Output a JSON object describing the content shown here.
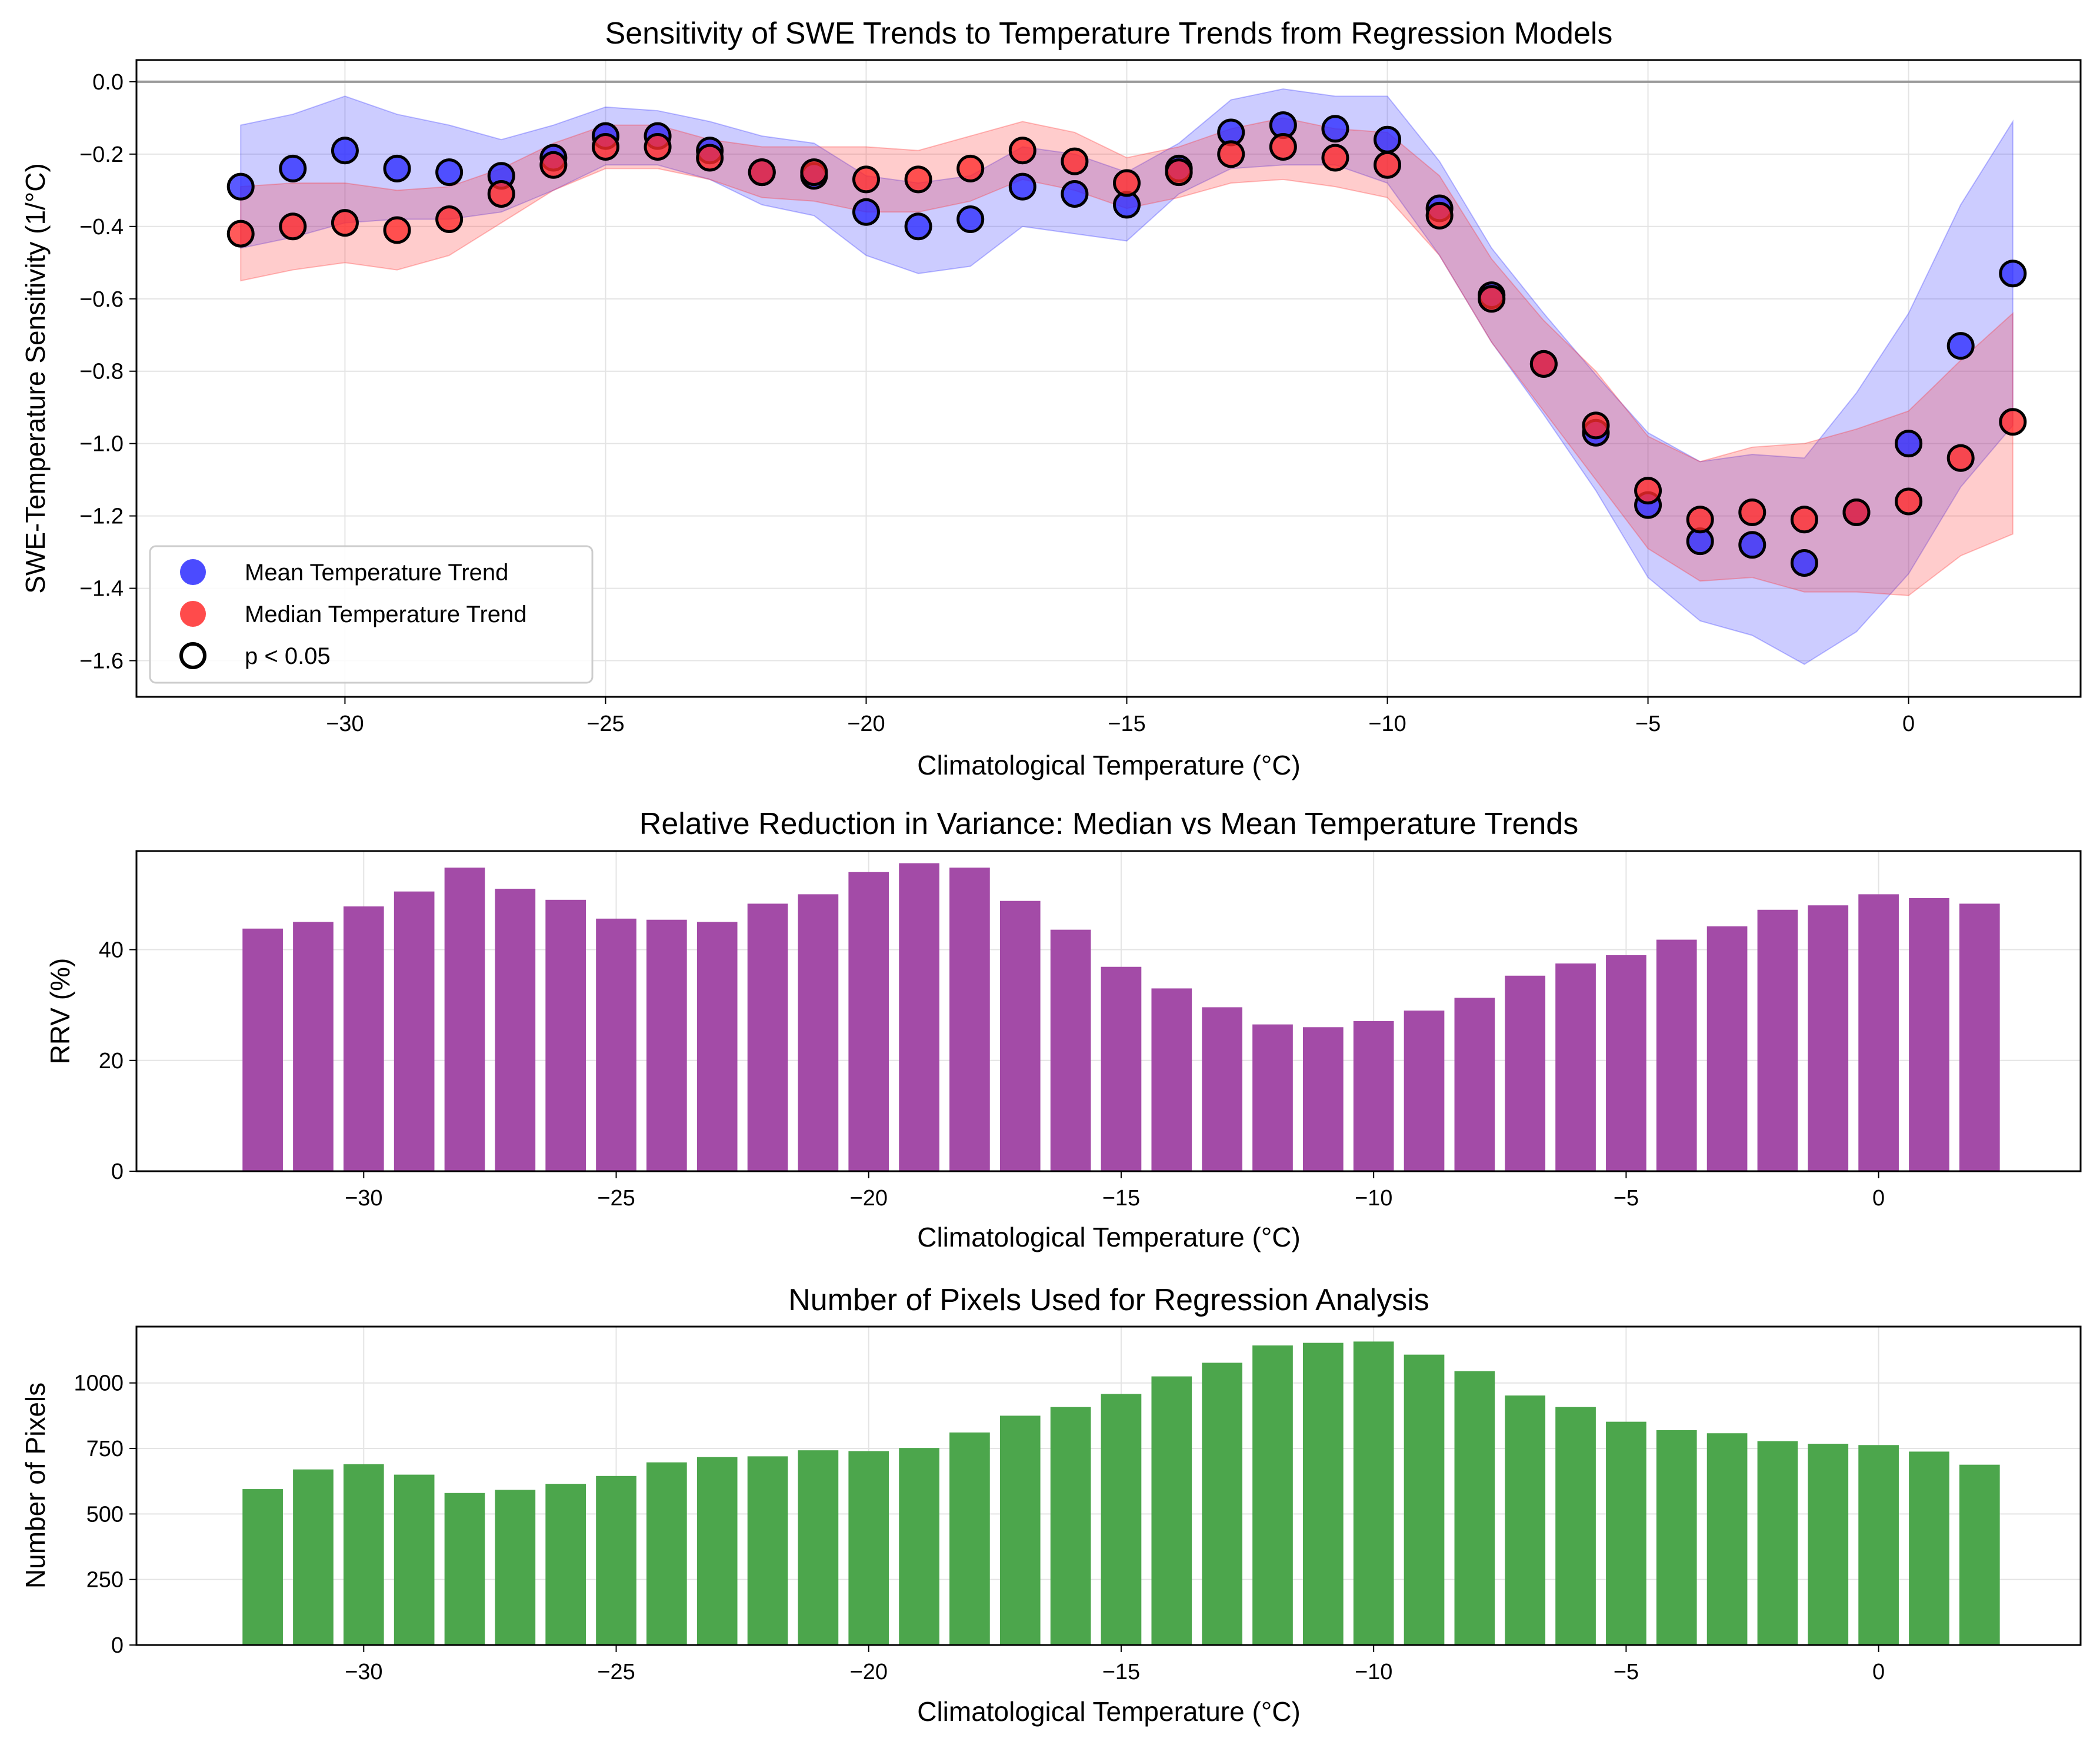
{
  "colors": {
    "mean": "#2b2bff",
    "median": "#ff2b2b",
    "overlap": "#7a2bbf",
    "rrv_bar": "#a34ba7",
    "pixels_bar": "#4ca64c",
    "reference_line": "#999999"
  },
  "chart_data": [
    {
      "type": "scatter",
      "title": "Sensitivity of SWE Trends to Temperature Trends from Regression Models",
      "xlabel": "Climatological Temperature (°C)",
      "ylabel": "SWE-Temperature Sensitivity (1/°C)",
      "xlim": [
        -34,
        3.3
      ],
      "ylim": [
        -1.7,
        0.06
      ],
      "xticks": [
        -30,
        -25,
        -20,
        -15,
        -10,
        -5,
        0
      ],
      "xtick_labels": [
        "−30",
        "−25",
        "−20",
        "−15",
        "−10",
        "−5",
        "0"
      ],
      "yticks": [
        0.0,
        -0.2,
        -0.4,
        -0.6,
        -0.8,
        -1.0,
        -1.2,
        -1.4,
        -1.6
      ],
      "ytick_labels": [
        "0.0",
        "−0.2",
        "−0.4",
        "−0.6",
        "−0.8",
        "−1.0",
        "−1.2",
        "−1.4",
        "−1.6"
      ],
      "grid": true,
      "reference_line_y": 0.0,
      "legend": {
        "placement": "lower-left",
        "entries": [
          "Mean Temperature Trend",
          "Median Temperature Trend",
          "p < 0.05"
        ]
      },
      "x": [
        -32,
        -31,
        -30,
        -29,
        -28,
        -27,
        -26,
        -25,
        -24,
        -23,
        -22,
        -21,
        -20,
        -19,
        -18,
        -17,
        -16,
        -15,
        -14,
        -13,
        -12,
        -11,
        -10,
        -9,
        -8,
        -7,
        -6,
        -5,
        -4,
        -3,
        -2,
        -1,
        0,
        1,
        2
      ],
      "series": [
        {
          "name": "Mean Temperature Trend",
          "values": [
            -0.29,
            -0.24,
            -0.19,
            -0.24,
            -0.25,
            -0.26,
            -0.21,
            -0.15,
            -0.15,
            -0.19,
            -0.25,
            -0.26,
            -0.36,
            -0.4,
            -0.38,
            -0.29,
            -0.31,
            -0.34,
            -0.24,
            -0.14,
            -0.12,
            -0.13,
            -0.16,
            -0.35,
            -0.59,
            -0.78,
            -0.97,
            -1.17,
            -1.27,
            -1.28,
            -1.33,
            -1.19,
            -1.0,
            -0.73,
            -0.53
          ],
          "ci_low": [
            -0.46,
            -0.43,
            -0.39,
            -0.38,
            -0.38,
            -0.36,
            -0.3,
            -0.23,
            -0.23,
            -0.27,
            -0.34,
            -0.37,
            -0.48,
            -0.53,
            -0.51,
            -0.4,
            -0.42,
            -0.44,
            -0.31,
            -0.24,
            -0.23,
            -0.23,
            -0.28,
            -0.48,
            -0.72,
            -0.92,
            -1.13,
            -1.37,
            -1.49,
            -1.53,
            -1.61,
            -1.52,
            -1.36,
            -1.12,
            -0.95
          ],
          "ci_high": [
            -0.12,
            -0.09,
            -0.04,
            -0.09,
            -0.12,
            -0.16,
            -0.12,
            -0.07,
            -0.08,
            -0.11,
            -0.15,
            -0.17,
            -0.26,
            -0.28,
            -0.26,
            -0.18,
            -0.2,
            -0.25,
            -0.17,
            -0.05,
            -0.02,
            -0.04,
            -0.04,
            -0.22,
            -0.46,
            -0.64,
            -0.81,
            -0.97,
            -1.05,
            -1.03,
            -1.04,
            -0.86,
            -0.64,
            -0.34,
            -0.11
          ]
        },
        {
          "name": "Median Temperature Trend",
          "values": [
            -0.42,
            -0.4,
            -0.39,
            -0.41,
            -0.38,
            -0.31,
            -0.23,
            -0.18,
            -0.18,
            -0.21,
            -0.25,
            -0.25,
            -0.27,
            -0.27,
            -0.24,
            -0.19,
            -0.22,
            -0.28,
            -0.25,
            -0.2,
            -0.18,
            -0.21,
            -0.23,
            -0.37,
            -0.6,
            -0.78,
            -0.95,
            -1.13,
            -1.21,
            -1.19,
            -1.21,
            -1.19,
            -1.16,
            -1.04,
            -0.94
          ],
          "ci_low": [
            -0.55,
            -0.52,
            -0.5,
            -0.52,
            -0.48,
            -0.39,
            -0.3,
            -0.24,
            -0.24,
            -0.27,
            -0.32,
            -0.33,
            -0.36,
            -0.36,
            -0.33,
            -0.27,
            -0.3,
            -0.35,
            -0.32,
            -0.28,
            -0.27,
            -0.29,
            -0.32,
            -0.48,
            -0.72,
            -0.91,
            -1.1,
            -1.29,
            -1.38,
            -1.37,
            -1.41,
            -1.41,
            -1.42,
            -1.31,
            -1.25
          ],
          "ci_high": [
            -0.29,
            -0.28,
            -0.28,
            -0.3,
            -0.29,
            -0.24,
            -0.17,
            -0.12,
            -0.12,
            -0.16,
            -0.18,
            -0.18,
            -0.18,
            -0.19,
            -0.15,
            -0.11,
            -0.14,
            -0.21,
            -0.18,
            -0.13,
            -0.1,
            -0.13,
            -0.14,
            -0.26,
            -0.49,
            -0.66,
            -0.8,
            -0.98,
            -1.05,
            -1.01,
            -1.0,
            -0.96,
            -0.91,
            -0.77,
            -0.64
          ]
        }
      ]
    },
    {
      "type": "bar",
      "title": "Relative Reduction in Variance: Median vs Mean Temperature Trends",
      "xlabel": "Climatological Temperature (°C)",
      "ylabel": "RRV (%)",
      "xlim": [
        -34.5,
        4.0
      ],
      "ylim": [
        0,
        57.8
      ],
      "xticks": [
        -30,
        -25,
        -20,
        -15,
        -10,
        -5,
        0
      ],
      "xtick_labels": [
        "−30",
        "−25",
        "−20",
        "−15",
        "−10",
        "−5",
        "0"
      ],
      "yticks": [
        0,
        20,
        40
      ],
      "ytick_labels": [
        "0",
        "20",
        "40"
      ],
      "grid": true,
      "categories": [
        -32,
        -31,
        -30,
        -29,
        -28,
        -27,
        -26,
        -25,
        -24,
        -23,
        -22,
        -21,
        -20,
        -19,
        -18,
        -17,
        -16,
        -15,
        -14,
        -13,
        -12,
        -11,
        -10,
        -9,
        -8,
        -7,
        -6,
        -5,
        -4,
        -3,
        -2,
        -1,
        0,
        1,
        2
      ],
      "values": [
        43.8,
        45.0,
        47.8,
        50.5,
        54.8,
        51.0,
        49.0,
        45.6,
        45.4,
        45.0,
        48.3,
        50.0,
        54.0,
        55.6,
        54.8,
        48.8,
        43.6,
        36.9,
        33.0,
        29.6,
        26.5,
        26.0,
        27.1,
        29.0,
        31.3,
        35.3,
        37.5,
        39.0,
        41.8,
        44.2,
        47.2,
        48.0,
        50.0,
        49.3,
        48.3
      ]
    },
    {
      "type": "bar",
      "title": "Number of Pixels Used for Regression Analysis",
      "xlabel": "Climatological Temperature (°C)",
      "ylabel": "Number of Pixels",
      "xlim": [
        -34.5,
        4.0
      ],
      "ylim": [
        0,
        1215
      ],
      "xticks": [
        -30,
        -25,
        -20,
        -15,
        -10,
        -5,
        0
      ],
      "xtick_labels": [
        "−30",
        "−25",
        "−20",
        "−15",
        "−10",
        "−5",
        "0"
      ],
      "yticks": [
        0,
        250,
        500,
        750,
        1000
      ],
      "ytick_labels": [
        "0",
        "250",
        "500",
        "750",
        "1000"
      ],
      "grid": true,
      "categories": [
        -32,
        -31,
        -30,
        -29,
        -28,
        -27,
        -26,
        -25,
        -24,
        -23,
        -22,
        -21,
        -20,
        -19,
        -18,
        -17,
        -16,
        -15,
        -14,
        -13,
        -12,
        -11,
        -10,
        -9,
        -8,
        -7,
        -6,
        -5,
        -4,
        -3,
        -2,
        -1,
        0,
        1,
        2
      ],
      "values": [
        595,
        670,
        690,
        650,
        580,
        592,
        615,
        645,
        697,
        717,
        720,
        743,
        740,
        752,
        811,
        875,
        908,
        958,
        1025,
        1077,
        1143,
        1153,
        1158,
        1108,
        1045,
        952,
        908,
        852,
        820,
        808,
        778,
        768,
        763,
        738,
        688
      ]
    }
  ]
}
